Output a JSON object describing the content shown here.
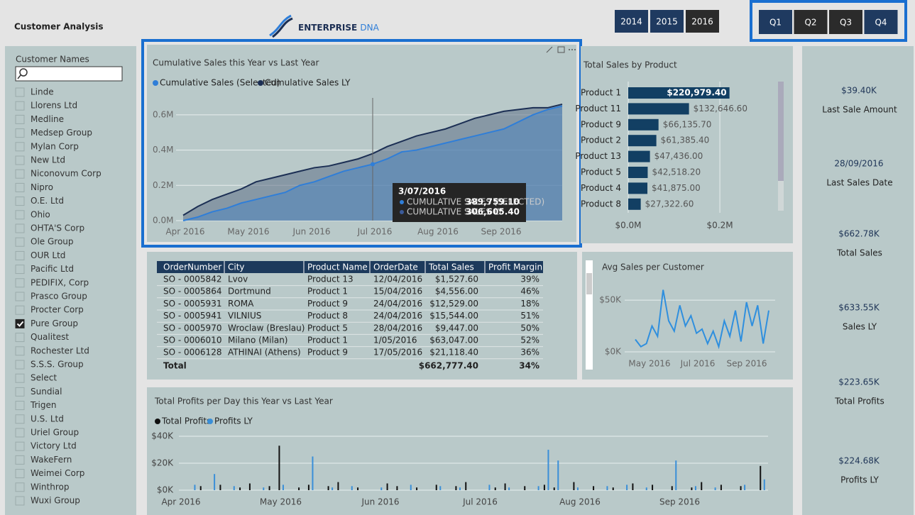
{
  "header": {
    "title": "Customer Analysis",
    "brand": "ENTERPRISE",
    "brand_accent": "DNA"
  },
  "year_buttons": [
    {
      "label": "2014",
      "selected": false
    },
    {
      "label": "2015",
      "selected": false
    },
    {
      "label": "2016",
      "selected": true
    }
  ],
  "quarter_buttons": [
    {
      "label": "Q1",
      "selected": false
    },
    {
      "label": "Q2",
      "selected": true
    },
    {
      "label": "Q3",
      "selected": true
    },
    {
      "label": "Q4",
      "selected": false
    }
  ],
  "customer_slicer": {
    "label": "Customer Names",
    "items": [
      {
        "name": "Linde",
        "checked": false
      },
      {
        "name": "Llorens Ltd",
        "checked": false
      },
      {
        "name": "Medline",
        "checked": false
      },
      {
        "name": "Medsep Group",
        "checked": false
      },
      {
        "name": "Mylan Corp",
        "checked": false
      },
      {
        "name": "New Ltd",
        "checked": false
      },
      {
        "name": "Niconovum Corp",
        "checked": false
      },
      {
        "name": "Nipro",
        "checked": false
      },
      {
        "name": "O.E. Ltd",
        "checked": false
      },
      {
        "name": "Ohio",
        "checked": false
      },
      {
        "name": "OHTA'S Corp",
        "checked": false
      },
      {
        "name": "Ole Group",
        "checked": false
      },
      {
        "name": "OUR Ltd",
        "checked": false
      },
      {
        "name": "Pacific Ltd",
        "checked": false
      },
      {
        "name": "PEDIFIX, Corp",
        "checked": false
      },
      {
        "name": "Prasco Group",
        "checked": false
      },
      {
        "name": "Procter Corp",
        "checked": false
      },
      {
        "name": "Pure Group",
        "checked": true
      },
      {
        "name": "Qualitest",
        "checked": false
      },
      {
        "name": "Rochester Ltd",
        "checked": false
      },
      {
        "name": "S.S.S. Group",
        "checked": false
      },
      {
        "name": "Select",
        "checked": false
      },
      {
        "name": "Sundial",
        "checked": false
      },
      {
        "name": "Trigen",
        "checked": false
      },
      {
        "name": "U.S. Ltd",
        "checked": false
      },
      {
        "name": "Uriel Group",
        "checked": false
      },
      {
        "name": "Victory Ltd",
        "checked": false
      },
      {
        "name": "WakeFern",
        "checked": false
      },
      {
        "name": "Weimei Corp",
        "checked": false
      },
      {
        "name": "Winthrop",
        "checked": false
      },
      {
        "name": "Wuxi Group",
        "checked": false
      }
    ]
  },
  "cumulative_chart": {
    "type": "line",
    "title": "Cumulative Sales this Year vs Last Year",
    "x_labels": [
      "Apr 2016",
      "May 2016",
      "Jun 2016",
      "Jul 2016",
      "Aug 2016",
      "Sep 2016"
    ],
    "ylim": [
      0,
      0.7
    ],
    "yticks": [
      {
        "value": 0,
        "label": "0.0M"
      },
      {
        "value": 0.2,
        "label": "0.2M"
      },
      {
        "value": 0.4,
        "label": "0.4M"
      },
      {
        "value": 0.6,
        "label": "0.6M"
      }
    ],
    "grid": true,
    "series": [
      {
        "name": "Cumulative Sales (Selected)",
        "color": "#2f7ed8",
        "fill": "#4f86c0",
        "values": [
          0,
          0.02,
          0.05,
          0.07,
          0.1,
          0.12,
          0.14,
          0.16,
          0.2,
          0.22,
          0.25,
          0.28,
          0.3,
          0.32,
          0.35,
          0.39,
          0.4,
          0.42,
          0.44,
          0.46,
          0.48,
          0.5,
          0.52,
          0.56,
          0.6,
          0.63,
          0.65
        ]
      },
      {
        "name": "Cumulative Sales LY",
        "color": "#1c2f54",
        "fill": "#5f6f86",
        "values": [
          0.03,
          0.08,
          0.12,
          0.15,
          0.18,
          0.22,
          0.24,
          0.26,
          0.28,
          0.3,
          0.31,
          0.33,
          0.35,
          0.38,
          0.42,
          0.45,
          0.48,
          0.5,
          0.52,
          0.55,
          0.58,
          0.6,
          0.62,
          0.63,
          0.64,
          0.64,
          0.66
        ]
      }
    ],
    "tooltip": {
      "date": "3/07/2016",
      "rows": [
        {
          "label": "CUMULATIVE SALES (SELECTED)",
          "value": "389,759.10"
        },
        {
          "label": "CUMULATIVE SALES LY",
          "value": "306,605.40"
        }
      ]
    }
  },
  "product_chart": {
    "type": "bar",
    "title": "Total Sales by Product",
    "categories": [
      "Product 1",
      "Product 11",
      "Product 9",
      "Product 2",
      "Product 13",
      "Product 5",
      "Product 4",
      "Product 8"
    ],
    "values": [
      220979.4,
      132646.6,
      66135.7,
      61385.4,
      47436.0,
      42518.2,
      41875.0,
      27322.6
    ],
    "value_labels": [
      "$220,979.40",
      "$132,646.60",
      "$66,135.70",
      "$61,385.40",
      "$47,436.00",
      "$42,518.20",
      "$41,875.00",
      "$27,322.60"
    ],
    "color": "#123f63",
    "xlim": [
      0,
      330000
    ],
    "xticks": [
      {
        "value": 0,
        "label": "$0.0M"
      },
      {
        "value": 200000,
        "label": "$0.2M"
      }
    ],
    "grid": true
  },
  "orders_table": {
    "columns": [
      "OrderNumber",
      "City",
      "Product Name",
      "OrderDate",
      "Total Sales",
      "Profit Margin"
    ],
    "rows": [
      [
        "SO - 0005842",
        "Lvov",
        "Product 13",
        "12/04/2016",
        "$1,527.60",
        "39%"
      ],
      [
        "SO - 0005864",
        "Dortmund",
        "Product 1",
        "15/04/2016",
        "$4,556.00",
        "46%"
      ],
      [
        "SO - 0005931",
        "ROMA",
        "Product 9",
        "24/04/2016",
        "$12,529.00",
        "18%"
      ],
      [
        "SO - 0005941",
        "VILNIUS",
        "Product 8",
        "24/04/2016",
        "$15,544.00",
        "51%"
      ],
      [
        "SO - 0005970",
        "Wroclaw (Breslau)",
        "Product 5",
        "28/04/2016",
        "$9,447.00",
        "50%"
      ],
      [
        "SO - 0006010",
        "Milano (Milan)",
        "Product 1",
        "1/05/2016",
        "$63,047.00",
        "52%"
      ],
      [
        "SO - 0006128",
        "ATHINAI (Athens)",
        "Product 9",
        "17/05/2016",
        "$21,118.40",
        "36%"
      ]
    ],
    "total": {
      "label": "Total",
      "total_sales": "$662,777.40",
      "profit_margin": "34%"
    }
  },
  "avg_chart": {
    "type": "line",
    "title": "Avg Sales per Customer",
    "x_labels": [
      "May 2016",
      "Jul 2016",
      "Sep 2016"
    ],
    "ylim": [
      0,
      70000
    ],
    "yticks": [
      {
        "value": 0,
        "label": "$0K"
      },
      {
        "value": 50000,
        "label": "$50K"
      }
    ],
    "grid": true,
    "color": "#2f8fde",
    "values": [
      12000,
      5000,
      8000,
      25000,
      15000,
      60000,
      30000,
      20000,
      45000,
      25000,
      35000,
      18000,
      22000,
      8000,
      20000,
      5000,
      30000,
      15000,
      40000,
      10000,
      48000,
      25000,
      45000,
      8000,
      40000
    ]
  },
  "profits_chart": {
    "type": "bar",
    "title": "Total Profits per Day this Year vs Last Year",
    "x_labels": [
      "Apr 2016",
      "May 2016",
      "Jun 2016",
      "Jul 2016",
      "Aug 2016",
      "Sep 2016"
    ],
    "ylim": [
      0,
      40000
    ],
    "yticks": [
      {
        "value": 0,
        "label": "$0K"
      },
      {
        "value": 20000,
        "label": "$20K"
      },
      {
        "value": 40000,
        "label": "$40K"
      }
    ],
    "grid": true,
    "series": [
      {
        "name": "Total Profits",
        "color": "#111111",
        "values": [
          0,
          0,
          3000,
          0,
          4000,
          0,
          2000,
          5000,
          0,
          3000,
          33000,
          0,
          2000,
          4000,
          0,
          3000,
          6000,
          0,
          2000,
          0,
          0,
          5000,
          3000,
          0,
          2000,
          0,
          4000,
          0,
          3000,
          6000,
          0,
          0,
          2000,
          5000,
          0,
          3000,
          0,
          4000,
          2000,
          0,
          6000,
          0,
          3000,
          0,
          2000,
          0,
          5000,
          0,
          4000,
          0,
          3000,
          0,
          2000,
          6000,
          0,
          4000,
          0,
          3000,
          0,
          18000
        ]
      },
      {
        "name": "Profits LY",
        "color": "#3a8fd8",
        "values": [
          0,
          4000,
          0,
          12000,
          0,
          3000,
          0,
          0,
          2000,
          0,
          4000,
          0,
          0,
          25000,
          0,
          2000,
          0,
          3000,
          0,
          0,
          2000,
          0,
          0,
          4000,
          0,
          0,
          3000,
          0,
          2000,
          0,
          0,
          4000,
          0,
          2000,
          0,
          0,
          3000,
          30000,
          22000,
          0,
          2000,
          0,
          0,
          3000,
          0,
          4000,
          0,
          2000,
          0,
          0,
          22000,
          0,
          3000,
          0,
          2000,
          0,
          0,
          4000,
          0,
          8000
        ]
      }
    ]
  },
  "kpis": [
    {
      "value": "$39.40K",
      "label": "Last Sale Amount"
    },
    {
      "value": "28/09/2016",
      "label": "Last Sales Date"
    },
    {
      "value": "$662.78K",
      "label": "Total Sales"
    },
    {
      "value": "$633.55K",
      "label": "Sales LY"
    },
    {
      "value": "$223.65K",
      "label": "Total Profits"
    },
    {
      "value": "$224.68K",
      "label": "Profits LY"
    }
  ]
}
